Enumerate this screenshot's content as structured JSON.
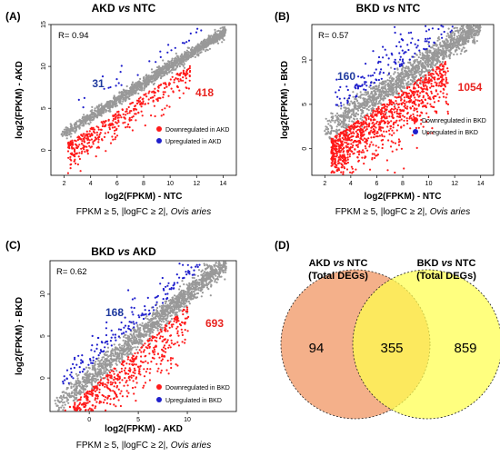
{
  "panels": [
    {
      "id": "A",
      "label": "(A)",
      "title_pre": "AKD ",
      "title_vs": "vs",
      "title_post": " NTC",
      "r_text": "R= 0.94",
      "xlabel": "log2(FPKM) - NTC",
      "ylabel": "log2(FPKM) - AKD",
      "xticks": [
        2,
        4,
        6,
        8,
        10,
        12,
        14
      ],
      "yticks": [
        0,
        5,
        10,
        15
      ],
      "xlim": [
        1,
        15
      ],
      "ylim": [
        -3,
        15
      ],
      "up_count": "31",
      "down_count": "418",
      "legend_down": "Downregulated in AKD",
      "legend_up": "Upregulated in AKD",
      "criteria_main": "FPKM ≥ 5, |logFC ≥ 2|, ",
      "criteria_species": "Ovis aries"
    },
    {
      "id": "B",
      "label": "(B)",
      "title_pre": "BKD ",
      "title_vs": "vs",
      "title_post": " NTC",
      "r_text": "R= 0.57",
      "xlabel": "log2(FPKM) - NTC",
      "ylabel": "log2(FPKM) - BKD",
      "xticks": [
        2,
        4,
        6,
        8,
        10,
        12,
        14
      ],
      "yticks": [
        0,
        5,
        10
      ],
      "xlim": [
        1,
        15
      ],
      "ylim": [
        -3,
        14
      ],
      "up_count": "160",
      "down_count": "1054",
      "legend_down": "Downregulated in BKD",
      "legend_up": "Upregulated in BKD",
      "criteria_main": "FPKM ≥ 5, |logFC ≥ 2|, ",
      "criteria_species": "Ovis aries"
    },
    {
      "id": "C",
      "label": "(C)",
      "title_pre": "BKD ",
      "title_vs": "vs",
      "title_post": " AKD",
      "r_text": "R= 0.62",
      "xlabel": "log2(FPKM) - AKD",
      "ylabel": "log2(FPKM) - BKD",
      "xticks": [
        0,
        5,
        10
      ],
      "yticks": [
        0,
        5,
        10
      ],
      "xlim": [
        -4,
        15
      ],
      "ylim": [
        -4,
        14
      ],
      "up_count": "168",
      "down_count": "693",
      "legend_down": "Downregulated in BKD",
      "legend_up": "Upregulated in BKD",
      "criteria_main": "FPKM ≥ 5, |logFC ≥ 2|, ",
      "criteria_species": "Ovis aries"
    }
  ],
  "venn": {
    "label": "(D)",
    "left_title_pre": "AKD ",
    "left_title_vs": "vs",
    "left_title_post": " NTC",
    "left_subtitle": "(Total DEGs)",
    "right_title_pre": "BKD ",
    "right_title_vs": "vs",
    "right_title_post": " NTC",
    "right_subtitle": "(Total DEGs)",
    "left_only": "94",
    "overlap": "355",
    "right_only": "859"
  },
  "colors": {
    "background_points": "#999999",
    "down": "#ff1a1a",
    "up": "#1f1fcc",
    "up_label": "#1f3a9e",
    "down_label": "#e8231f",
    "venn_left": "#f4b08a",
    "venn_right": "#ffff4d",
    "venn_overlap": "#f8cf3c"
  },
  "chart_data": [
    {
      "type": "scatter",
      "panel": "A",
      "title": "AKD vs NTC",
      "xlabel": "log2(FPKM) - NTC",
      "ylabel": "log2(FPKM) - AKD",
      "xlim": [
        1,
        15
      ],
      "ylim": [
        -3,
        15
      ],
      "correlation": 0.94,
      "series": [
        {
          "name": "Downregulated in AKD",
          "count": 418
        },
        {
          "name": "Upregulated in AKD",
          "count": 31
        }
      ]
    },
    {
      "type": "scatter",
      "panel": "B",
      "title": "BKD vs NTC",
      "xlabel": "log2(FPKM) - NTC",
      "ylabel": "log2(FPKM) - BKD",
      "xlim": [
        1,
        15
      ],
      "ylim": [
        -3,
        14
      ],
      "correlation": 0.57,
      "series": [
        {
          "name": "Downregulated in BKD",
          "count": 1054
        },
        {
          "name": "Upregulated in BKD",
          "count": 160
        }
      ]
    },
    {
      "type": "scatter",
      "panel": "C",
      "title": "BKD vs AKD",
      "xlabel": "log2(FPKM) - AKD",
      "ylabel": "log2(FPKM) - BKD",
      "xlim": [
        -4,
        15
      ],
      "ylim": [
        -4,
        14
      ],
      "correlation": 0.62,
      "series": [
        {
          "name": "Downregulated in BKD",
          "count": 693
        },
        {
          "name": "Upregulated in BKD",
          "count": 168
        }
      ]
    },
    {
      "type": "venn",
      "panel": "D",
      "sets": [
        "AKD vs NTC (Total DEGs)",
        "BKD vs NTC (Total DEGs)"
      ],
      "left_only": 94,
      "overlap": 355,
      "right_only": 859
    }
  ]
}
